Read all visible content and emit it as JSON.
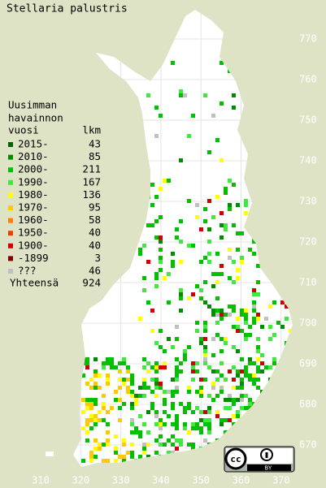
{
  "title": "Stellaria palustris",
  "legend": {
    "heading": [
      "Uusimman",
      "havainnon"
    ],
    "year_header": "vuosi",
    "count_header": "lkm",
    "entries": [
      {
        "label": "2015-",
        "count": 43,
        "color": "#006400"
      },
      {
        "label": "2010-",
        "count": 85,
        "color": "#008c00"
      },
      {
        "label": "2000-",
        "count": 211,
        "color": "#00c000"
      },
      {
        "label": "1990-",
        "count": 167,
        "color": "#40e840"
      },
      {
        "label": "1980-",
        "count": 136,
        "color": "#ffff00"
      },
      {
        "label": "1970-",
        "count": 95,
        "color": "#ffc800"
      },
      {
        "label": "1960-",
        "count": 58,
        "color": "#ff8000"
      },
      {
        "label": "1950-",
        "count": 40,
        "color": "#e84000"
      },
      {
        "label": "1900-",
        "count": 40,
        "color": "#d00000"
      },
      {
        "label": "-1899",
        "count": 3,
        "color": "#800000"
      },
      {
        "label": "???",
        "count": 46,
        "color": "#c0c0c0"
      }
    ],
    "total_label": "Yhteensä",
    "total": 924
  },
  "axes": {
    "xticks": [
      310,
      320,
      330,
      340,
      350,
      360,
      370
    ],
    "yticks": [
      670,
      680,
      690,
      700,
      710,
      720,
      730,
      740,
      750,
      760,
      770
    ]
  },
  "license": "BY"
}
